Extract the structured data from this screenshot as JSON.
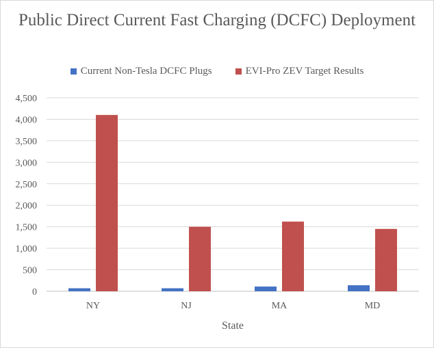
{
  "chart_data": {
    "type": "bar",
    "title": "Public Direct Current Fast Charging (DCFC) Deployment",
    "xlabel": "State",
    "ylabel": "",
    "categories": [
      "NY",
      "NJ",
      "MA",
      "MD"
    ],
    "series": [
      {
        "name": "Current Non-Tesla DCFC Plugs",
        "color": "#4472c4",
        "values": [
          70,
          70,
          110,
          140
        ]
      },
      {
        "name": "EVI-Pro ZEV Target Results",
        "color": "#c0504d",
        "values": [
          4100,
          1500,
          1620,
          1450
        ]
      }
    ],
    "ylim": [
      0,
      4500
    ],
    "yticks": [
      0,
      500,
      1000,
      1500,
      2000,
      2500,
      3000,
      3500,
      4000,
      4500
    ],
    "grid": true,
    "legend_position": "top"
  }
}
